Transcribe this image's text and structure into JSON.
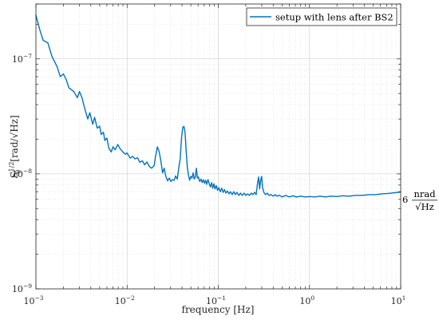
{
  "chart_data": {
    "type": "line",
    "xlabel": "frequency [Hz]",
    "ylabel": "S_θ^{1/2} [rad/√Hz]",
    "ylabel_parts": {
      "base": "S",
      "sup": "1/2",
      "sub": "θ",
      "units": "[rad/√Hz]"
    },
    "xscale": "log",
    "yscale": "log",
    "xlim": [
      0.001,
      10
    ],
    "ylim": [
      1e-09,
      3e-07
    ],
    "grid": true,
    "legend_position": "top-right",
    "x_ticks": [
      {
        "base": "10",
        "exp": "−3"
      },
      {
        "base": "10",
        "exp": "−2"
      },
      {
        "base": "10",
        "exp": "−1"
      },
      {
        "base": "10",
        "exp": "0"
      },
      {
        "base": "10",
        "exp": "1"
      }
    ],
    "y_ticks": [
      {
        "base": "10",
        "exp": "−9"
      },
      {
        "base": "10",
        "exp": "−8"
      },
      {
        "base": "10",
        "exp": "−7"
      }
    ],
    "annotation": {
      "value": "6",
      "num": "nrad",
      "den": "√Hz",
      "at_y": 6e-09
    },
    "series": [
      {
        "name": "setup with lens after BS2",
        "color": "#0072BD",
        "points": [
          [
            0.001,
            2.4e-07
          ],
          [
            0.0011,
            1.8e-07
          ],
          [
            0.0012,
            1.45e-07
          ],
          [
            0.00135,
            1.38e-07
          ],
          [
            0.0015,
            1.05e-07
          ],
          [
            0.0017,
            8.6e-08
          ],
          [
            0.00185,
            7e-08
          ],
          [
            0.002,
            7.4e-08
          ],
          [
            0.00215,
            6.6e-08
          ],
          [
            0.0023,
            5.6e-08
          ],
          [
            0.0026,
            5.2e-08
          ],
          [
            0.00285,
            4.6e-08
          ],
          [
            0.003,
            5.2e-08
          ],
          [
            0.0032,
            4.6e-08
          ],
          [
            0.0034,
            3.8e-08
          ],
          [
            0.0037,
            3e-08
          ],
          [
            0.0039,
            3.4e-08
          ],
          [
            0.0042,
            2.7e-08
          ],
          [
            0.0044,
            3.1e-08
          ],
          [
            0.0047,
            2.5e-08
          ],
          [
            0.005,
            2.6e-08
          ],
          [
            0.0052,
            2.2e-08
          ],
          [
            0.0055,
            2.3e-08
          ],
          [
            0.0057,
            1.95e-08
          ],
          [
            0.006,
            2.05e-08
          ],
          [
            0.0063,
            1.68e-08
          ],
          [
            0.0067,
            1.55e-08
          ],
          [
            0.007,
            1.72e-08
          ],
          [
            0.0074,
            1.62e-08
          ],
          [
            0.0079,
            1.8e-08
          ],
          [
            0.0084,
            1.65e-08
          ],
          [
            0.009,
            1.55e-08
          ],
          [
            0.0096,
            1.48e-08
          ],
          [
            0.01,
            1.52e-08
          ],
          [
            0.0108,
            1.37e-08
          ],
          [
            0.0115,
            1.42e-08
          ],
          [
            0.0122,
            1.35e-08
          ],
          [
            0.013,
            1.38e-08
          ],
          [
            0.0138,
            1.26e-08
          ],
          [
            0.0147,
            1.3e-08
          ],
          [
            0.0156,
            1.2e-08
          ],
          [
            0.0165,
            1.27e-08
          ],
          [
            0.0175,
            1.16e-08
          ],
          [
            0.0186,
            1.12e-08
          ],
          [
            0.0198,
            1.18e-08
          ],
          [
            0.0205,
            1.42e-08
          ],
          [
            0.0215,
            1.72e-08
          ],
          [
            0.0225,
            1.55e-08
          ],
          [
            0.0235,
            1.28e-08
          ],
          [
            0.0245,
            1.02e-08
          ],
          [
            0.0255,
            1.12e-08
          ],
          [
            0.0265,
            9.6e-09
          ],
          [
            0.0278,
            8.7e-09
          ],
          [
            0.029,
            9.2e-09
          ],
          [
            0.0302,
            8.6e-09
          ],
          [
            0.0315,
            8.9e-09
          ],
          [
            0.0328,
            8.8e-09
          ],
          [
            0.034,
            9.6e-09
          ],
          [
            0.0355,
            9e-09
          ],
          [
            0.0368,
            1.12e-08
          ],
          [
            0.0382,
            1.35e-08
          ],
          [
            0.0395,
            2.05e-08
          ],
          [
            0.0408,
            2.55e-08
          ],
          [
            0.042,
            2.58e-08
          ],
          [
            0.0432,
            2.3e-08
          ],
          [
            0.0445,
            1.55e-08
          ],
          [
            0.0457,
            1.15e-08
          ],
          [
            0.047,
            9.8e-09
          ],
          [
            0.0485,
            8.8e-09
          ],
          [
            0.05,
            9.5e-09
          ],
          [
            0.0515,
            9.2e-09
          ],
          [
            0.053,
            1.02e-08
          ],
          [
            0.0545,
            9e-09
          ],
          [
            0.056,
            9.4e-09
          ],
          [
            0.0575,
            1.12e-08
          ],
          [
            0.059,
            9.2e-09
          ],
          [
            0.0605,
            9.4e-09
          ],
          [
            0.0625,
            8.6e-09
          ],
          [
            0.0645,
            9e-09
          ],
          [
            0.0665,
            8.4e-09
          ],
          [
            0.0685,
            8.9e-09
          ],
          [
            0.0705,
            8.3e-09
          ],
          [
            0.0725,
            8.8e-09
          ],
          [
            0.0745,
            8.1e-09
          ],
          [
            0.077,
            8.9e-09
          ],
          [
            0.0795,
            8.2e-09
          ],
          [
            0.082,
            7.7e-09
          ],
          [
            0.0845,
            8.4e-09
          ],
          [
            0.087,
            7.5e-09
          ],
          [
            0.0895,
            8.2e-09
          ],
          [
            0.092,
            7.4e-09
          ],
          [
            0.095,
            7.9e-09
          ],
          [
            0.098,
            7.2e-09
          ],
          [
            0.101,
            7.6e-09
          ],
          [
            0.105,
            7e-09
          ],
          [
            0.109,
            7.5e-09
          ],
          [
            0.113,
            6.9e-09
          ],
          [
            0.117,
            7.3e-09
          ],
          [
            0.121,
            6.8e-09
          ],
          [
            0.126,
            7.1e-09
          ],
          [
            0.131,
            6.7e-09
          ],
          [
            0.136,
            7e-09
          ],
          [
            0.142,
            6.6e-09
          ],
          [
            0.148,
            7e-09
          ],
          [
            0.154,
            6.6e-09
          ],
          [
            0.16,
            6.9e-09
          ],
          [
            0.168,
            6.5e-09
          ],
          [
            0.175,
            6.8e-09
          ],
          [
            0.183,
            6.5e-09
          ],
          [
            0.192,
            6.8e-09
          ],
          [
            0.2,
            6.5e-09
          ],
          [
            0.21,
            6.7e-09
          ],
          [
            0.22,
            6.5e-09
          ],
          [
            0.23,
            6.8e-09
          ],
          [
            0.24,
            6.6e-09
          ],
          [
            0.25,
            6.9e-09
          ],
          [
            0.26,
            6.6e-09
          ],
          [
            0.27,
            8.4e-09
          ],
          [
            0.277,
            9.4e-09
          ],
          [
            0.284,
            7.4e-09
          ],
          [
            0.292,
            8.9e-09
          ],
          [
            0.299,
            9.5e-09
          ],
          [
            0.306,
            7.6e-09
          ],
          [
            0.316,
            6.9e-09
          ],
          [
            0.33,
            6.6e-09
          ],
          [
            0.345,
            6.8e-09
          ],
          [
            0.36,
            6.5e-09
          ],
          [
            0.38,
            6.6e-09
          ],
          [
            0.4,
            6.4e-09
          ],
          [
            0.42,
            6.6e-09
          ],
          [
            0.44,
            6.4e-09
          ],
          [
            0.47,
            6.5e-09
          ],
          [
            0.5,
            6.3e-09
          ],
          [
            0.55,
            6.5e-09
          ],
          [
            0.6,
            6.3e-09
          ],
          [
            0.66,
            6.45e-09
          ],
          [
            0.72,
            6.3e-09
          ],
          [
            0.8,
            6.4e-09
          ],
          [
            0.9,
            6.3e-09
          ],
          [
            1.0,
            6.35e-09
          ],
          [
            1.15,
            6.3e-09
          ],
          [
            1.3,
            6.4e-09
          ],
          [
            1.5,
            6.3e-09
          ],
          [
            1.7,
            6.4e-09
          ],
          [
            2.0,
            6.35e-09
          ],
          [
            2.3,
            6.45e-09
          ],
          [
            2.7,
            6.4e-09
          ],
          [
            3.2,
            6.5e-09
          ],
          [
            3.8,
            6.5e-09
          ],
          [
            4.5,
            6.6e-09
          ],
          [
            5.3,
            6.6e-09
          ],
          [
            6.2,
            6.7e-09
          ],
          [
            7.3,
            6.75e-09
          ],
          [
            8.5,
            6.85e-09
          ],
          [
            10.0,
            6.95e-09
          ]
        ]
      }
    ]
  }
}
